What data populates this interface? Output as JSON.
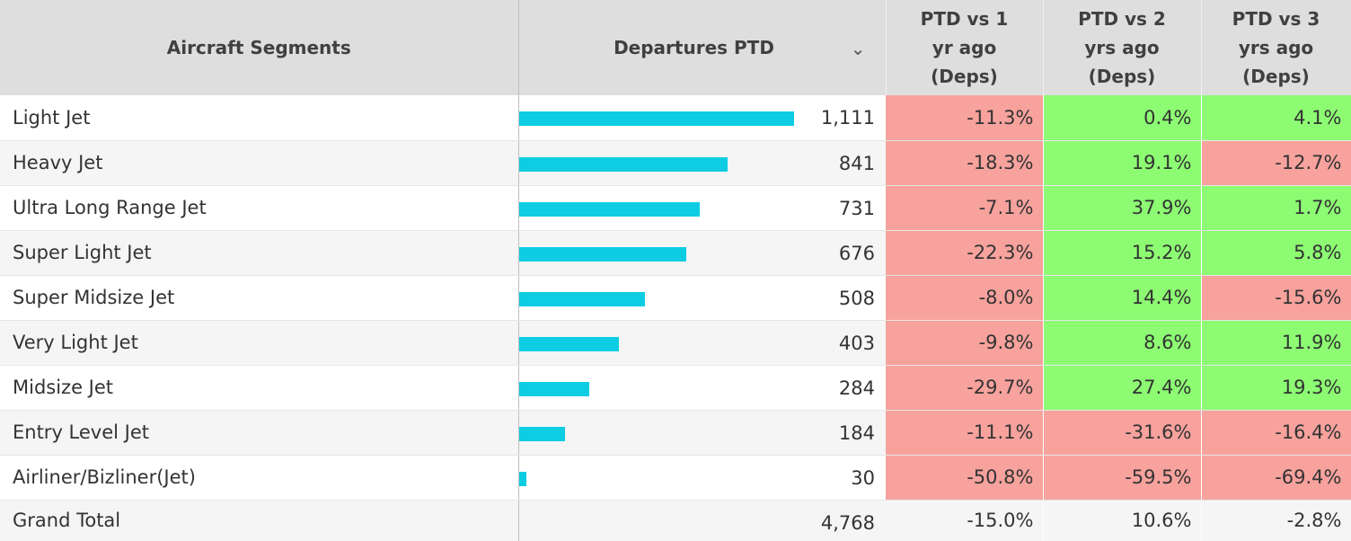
{
  "colors": {
    "bar": "#0ecde3",
    "negative": "#f7a29d",
    "positive": "#8dfc73",
    "header_bg": "#dedede"
  },
  "header": {
    "segments": "Aircraft Segments",
    "departures": "Departures PTD",
    "sort_icon": "chevron-down-icon",
    "ptd1": [
      "PTD vs 1",
      "yr ago",
      "(Deps)"
    ],
    "ptd2": [
      "PTD vs 2",
      "yrs ago",
      "(Deps)"
    ],
    "ptd3": [
      "PTD vs 3",
      "yrs ago",
      "(Deps)"
    ]
  },
  "chart_data": {
    "type": "table",
    "columns": [
      "Aircraft Segments",
      "Departures PTD",
      "PTD vs 1 yr ago (Deps)",
      "PTD vs 2 yrs ago (Deps)",
      "PTD vs 3 yrs ago (Deps)"
    ],
    "bar_max": 1111,
    "rows": [
      {
        "segment": "Light Jet",
        "departures": 1111,
        "departures_label": "1,111",
        "ptd1": "-11.3%",
        "ptd2": "0.4%",
        "ptd3": "4.1%"
      },
      {
        "segment": "Heavy Jet",
        "departures": 841,
        "departures_label": "841",
        "ptd1": "-18.3%",
        "ptd2": "19.1%",
        "ptd3": "-12.7%"
      },
      {
        "segment": "Ultra Long Range Jet",
        "departures": 731,
        "departures_label": "731",
        "ptd1": "-7.1%",
        "ptd2": "37.9%",
        "ptd3": "1.7%"
      },
      {
        "segment": "Super Light Jet",
        "departures": 676,
        "departures_label": "676",
        "ptd1": "-22.3%",
        "ptd2": "15.2%",
        "ptd3": "5.8%"
      },
      {
        "segment": "Super Midsize Jet",
        "departures": 508,
        "departures_label": "508",
        "ptd1": "-8.0%",
        "ptd2": "14.4%",
        "ptd3": "-15.6%"
      },
      {
        "segment": "Very Light Jet",
        "departures": 403,
        "departures_label": "403",
        "ptd1": "-9.8%",
        "ptd2": "8.6%",
        "ptd3": "11.9%"
      },
      {
        "segment": "Midsize Jet",
        "departures": 284,
        "departures_label": "284",
        "ptd1": "-29.7%",
        "ptd2": "27.4%",
        "ptd3": "19.3%"
      },
      {
        "segment": "Entry Level Jet",
        "departures": 184,
        "departures_label": "184",
        "ptd1": "-11.1%",
        "ptd2": "-31.6%",
        "ptd3": "-16.4%"
      },
      {
        "segment": "Airliner/Bizliner(Jet)",
        "departures": 30,
        "departures_label": "30",
        "ptd1": "-50.8%",
        "ptd2": "-59.5%",
        "ptd3": "-69.4%"
      }
    ],
    "total": {
      "segment": "Grand Total",
      "departures_label": "4,768",
      "ptd1": "-15.0%",
      "ptd2": "10.6%",
      "ptd3": "-2.8%"
    }
  }
}
